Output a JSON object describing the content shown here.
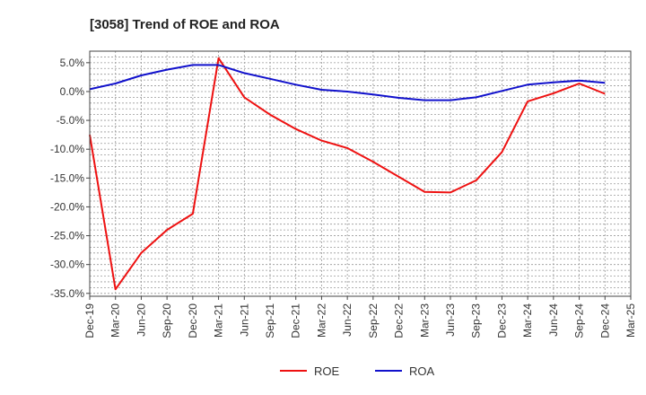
{
  "chart_data": {
    "type": "line",
    "title": "[3058]  Trend of ROE and ROA",
    "x": [
      "Dec-19",
      "Mar-20",
      "Jun-20",
      "Sep-20",
      "Dec-20",
      "Mar-21",
      "Jun-21",
      "Sep-21",
      "Dec-21",
      "Mar-22",
      "Jun-22",
      "Sep-22",
      "Dec-22",
      "Mar-23",
      "Jun-23",
      "Sep-23",
      "Dec-23",
      "Mar-24",
      "Jun-24",
      "Sep-24",
      "Dec-24",
      "Mar-25"
    ],
    "series": [
      {
        "name": "ROE",
        "color": "#ee1111",
        "values": [
          -7.5,
          -34.3,
          -28.0,
          -24.0,
          -21.2,
          5.8,
          -1.0,
          -4.0,
          -6.5,
          -8.5,
          -9.8,
          -12.2,
          -14.8,
          -17.4,
          -17.5,
          -15.4,
          -10.5,
          -1.7,
          -0.3,
          1.4,
          -0.4,
          null
        ]
      },
      {
        "name": "ROA",
        "color": "#1111cc",
        "values": [
          0.4,
          1.4,
          2.8,
          3.8,
          4.6,
          4.6,
          3.2,
          2.2,
          1.2,
          0.3,
          0.0,
          -0.5,
          -1.1,
          -1.5,
          -1.5,
          -1.0,
          0.1,
          1.2,
          1.6,
          1.9,
          1.5,
          null
        ]
      }
    ],
    "y_ticks": [
      5.0,
      0.0,
      -5.0,
      -10.0,
      -15.0,
      -20.0,
      -25.0,
      -30.0,
      -35.0
    ],
    "y_tick_labels": [
      "5.0%",
      "0.0%",
      "-5.0%",
      "-10.0%",
      "-15.0%",
      "-20.0%",
      "-25.0%",
      "-30.0%",
      "-35.0%"
    ],
    "ylim": [
      -35.5,
      7.0
    ],
    "grid": true,
    "legend_position": "bottom-center"
  }
}
